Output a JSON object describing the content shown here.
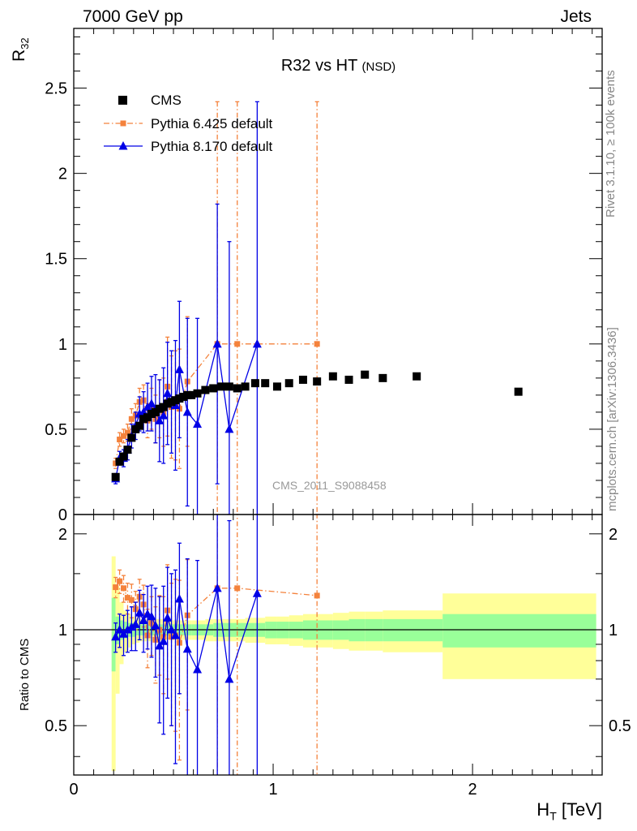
{
  "header": {
    "left": "7000 GeV pp",
    "right": "Jets"
  },
  "side_text": {
    "rivet": "Rivet 3.1.10, ≥ 100k events",
    "mcplots": "mcplots.cern.ch [arXiv:1306.3436]"
  },
  "chart_data": [
    {
      "type": "scatter",
      "title": "R32 vs HT",
      "title_suffix": "(NSD)",
      "ylabel_main": "R",
      "ylabel_sub": "32",
      "watermark": "CMS_2011_S9088458",
      "xlim": [
        0,
        2.65
      ],
      "ylim": [
        0,
        2.85
      ],
      "yticks": [
        0,
        0.5,
        1,
        1.5,
        2,
        2.5
      ],
      "ytick_labels": [
        "0",
        "0.5",
        "1",
        "1.5",
        "2",
        "2.5"
      ],
      "legend": [
        "CMS",
        "Pythia 6.425 default",
        "Pythia 8.170 default"
      ],
      "series": [
        {
          "name": "CMS",
          "color": "#000000",
          "x": [
            0.21,
            0.23,
            0.25,
            0.27,
            0.29,
            0.31,
            0.33,
            0.35,
            0.37,
            0.39,
            0.41,
            0.43,
            0.45,
            0.47,
            0.49,
            0.51,
            0.53,
            0.55,
            0.57,
            0.59,
            0.62,
            0.66,
            0.7,
            0.74,
            0.78,
            0.82,
            0.86,
            0.91,
            0.96,
            1.02,
            1.08,
            1.15,
            1.22,
            1.3,
            1.38,
            1.46,
            1.55,
            1.72,
            2.23
          ],
          "y": [
            0.22,
            0.31,
            0.34,
            0.38,
            0.45,
            0.5,
            0.52,
            0.56,
            0.57,
            0.59,
            0.6,
            0.62,
            0.63,
            0.65,
            0.66,
            0.67,
            0.68,
            0.69,
            0.7,
            0.7,
            0.71,
            0.73,
            0.74,
            0.75,
            0.75,
            0.74,
            0.75,
            0.77,
            0.77,
            0.75,
            0.77,
            0.79,
            0.78,
            0.81,
            0.79,
            0.82,
            0.8,
            0.81,
            0.72
          ]
        },
        {
          "name": "Pythia 6.425 default",
          "color": "#f4823c",
          "x": [
            0.21,
            0.23,
            0.25,
            0.27,
            0.29,
            0.31,
            0.33,
            0.35,
            0.37,
            0.39,
            0.41,
            0.43,
            0.45,
            0.47,
            0.49,
            0.51,
            0.53,
            0.57,
            0.72,
            0.82,
            1.22
          ],
          "y": [
            0.3,
            0.44,
            0.46,
            0.48,
            0.56,
            0.58,
            0.66,
            0.67,
            0.55,
            0.62,
            0.56,
            0.62,
            0.6,
            0.75,
            0.63,
            0.64,
            0.62,
            0.78,
            1.0,
            1.0,
            1.0
          ],
          "err": [
            0.03,
            0.04,
            0.04,
            0.05,
            0.06,
            0.07,
            0.08,
            0.09,
            0.1,
            0.12,
            0.14,
            0.17,
            0.2,
            0.29,
            0.3,
            0.32,
            0.35,
            0.38,
            1.42,
            1.42,
            1.42
          ]
        },
        {
          "name": "Pythia 8.170 default",
          "color": "#0000e6",
          "x": [
            0.21,
            0.23,
            0.25,
            0.27,
            0.29,
            0.31,
            0.33,
            0.35,
            0.37,
            0.39,
            0.41,
            0.43,
            0.45,
            0.47,
            0.49,
            0.51,
            0.53,
            0.57,
            0.62,
            0.72,
            0.78,
            0.92
          ],
          "y": [
            0.21,
            0.33,
            0.33,
            0.38,
            0.46,
            0.52,
            0.59,
            0.6,
            0.63,
            0.65,
            0.62,
            0.55,
            0.58,
            0.71,
            0.66,
            0.64,
            0.85,
            0.6,
            0.53,
            1.0,
            0.5,
            1.0
          ],
          "err": [
            0.03,
            0.04,
            0.05,
            0.06,
            0.07,
            0.08,
            0.1,
            0.12,
            0.14,
            0.16,
            0.2,
            0.24,
            0.28,
            0.3,
            0.3,
            0.38,
            0.4,
            0.55,
            0.62,
            0.82,
            1.1,
            1.42
          ]
        }
      ]
    },
    {
      "type": "scatter",
      "title": "Ratio to CMS",
      "ylabel": "Ratio to CMS",
      "xlabel_main": "H",
      "xlabel_sub": "T",
      "xlabel_unit": " [TeV]",
      "xlim": [
        0,
        2.65
      ],
      "ylim": [
        0.35,
        2.3
      ],
      "yticks": [
        0.5,
        1,
        2
      ],
      "ytick_labels": [
        "0.5",
        "1",
        "2"
      ],
      "xticks": [
        0,
        1,
        2
      ],
      "xtick_labels": [
        "0",
        "1",
        "2"
      ],
      "band_bins": [
        0.19,
        0.21,
        0.23,
        0.25,
        0.27,
        0.29,
        0.31,
        0.33,
        0.35,
        0.37,
        0.39,
        0.41,
        0.43,
        0.45,
        0.47,
        0.49,
        0.51,
        0.53,
        0.55,
        0.57,
        0.59,
        0.62,
        0.66,
        0.7,
        0.74,
        0.78,
        0.82,
        0.86,
        0.91,
        0.96,
        1.02,
        1.08,
        1.15,
        1.22,
        1.3,
        1.38,
        1.46,
        1.55,
        1.85,
        2.62
      ],
      "band_stat": [
        0.26,
        0.1,
        0.07,
        0.06,
        0.05,
        0.05,
        0.04,
        0.04,
        0.04,
        0.04,
        0.04,
        0.04,
        0.04,
        0.04,
        0.04,
        0.04,
        0.04,
        0.04,
        0.04,
        0.04,
        0.04,
        0.04,
        0.04,
        0.05,
        0.05,
        0.05,
        0.05,
        0.05,
        0.05,
        0.06,
        0.06,
        0.06,
        0.07,
        0.07,
        0.07,
        0.08,
        0.08,
        0.08,
        0.12
      ],
      "band_total": [
        0.7,
        0.37,
        0.22,
        0.15,
        0.12,
        0.1,
        0.09,
        0.08,
        0.08,
        0.08,
        0.08,
        0.08,
        0.08,
        0.07,
        0.07,
        0.07,
        0.07,
        0.07,
        0.07,
        0.07,
        0.07,
        0.07,
        0.08,
        0.08,
        0.08,
        0.08,
        0.08,
        0.09,
        0.09,
        0.1,
        0.1,
        0.11,
        0.12,
        0.12,
        0.13,
        0.14,
        0.14,
        0.15,
        0.3
      ],
      "series": [
        {
          "name": "Pythia 6.425 default",
          "color": "#f4823c",
          "x": [
            0.21,
            0.23,
            0.25,
            0.27,
            0.29,
            0.31,
            0.33,
            0.35,
            0.37,
            0.39,
            0.41,
            0.43,
            0.45,
            0.47,
            0.49,
            0.51,
            0.53,
            0.57,
            0.72,
            0.82,
            1.22
          ],
          "y": [
            1.36,
            1.42,
            1.35,
            1.26,
            1.24,
            1.16,
            1.27,
            1.2,
            0.96,
            1.05,
            0.93,
            1.0,
            0.95,
            1.15,
            0.95,
            0.96,
            0.91,
            1.11,
            1.35,
            1.35,
            1.28
          ],
          "err": [
            0.1,
            0.12,
            0.13,
            0.14,
            0.15,
            0.16,
            0.17,
            0.18,
            0.2,
            0.22,
            0.25,
            0.28,
            0.32,
            0.45,
            0.45,
            0.48,
            0.52,
            0.55,
            1.9,
            1.9,
            1.9
          ]
        },
        {
          "name": "Pythia 8.170 default",
          "color": "#0000e6",
          "x": [
            0.21,
            0.23,
            0.25,
            0.27,
            0.29,
            0.31,
            0.33,
            0.35,
            0.37,
            0.39,
            0.41,
            0.43,
            0.45,
            0.47,
            0.49,
            0.51,
            0.53,
            0.57,
            0.62,
            0.72,
            0.78,
            0.92
          ],
          "y": [
            0.95,
            1.0,
            0.97,
            1.0,
            1.02,
            1.04,
            1.13,
            1.07,
            1.12,
            1.1,
            1.03,
            0.89,
            0.92,
            1.09,
            1.0,
            0.96,
            1.25,
            0.87,
            0.75,
            1.35,
            0.7,
            1.3
          ],
          "err": [
            0.1,
            0.12,
            0.14,
            0.15,
            0.16,
            0.18,
            0.2,
            0.22,
            0.25,
            0.28,
            0.32,
            0.38,
            0.45,
            0.48,
            0.5,
            0.58,
            0.62,
            0.8,
            0.9,
            1.1,
            1.5,
            1.9
          ]
        }
      ]
    }
  ]
}
